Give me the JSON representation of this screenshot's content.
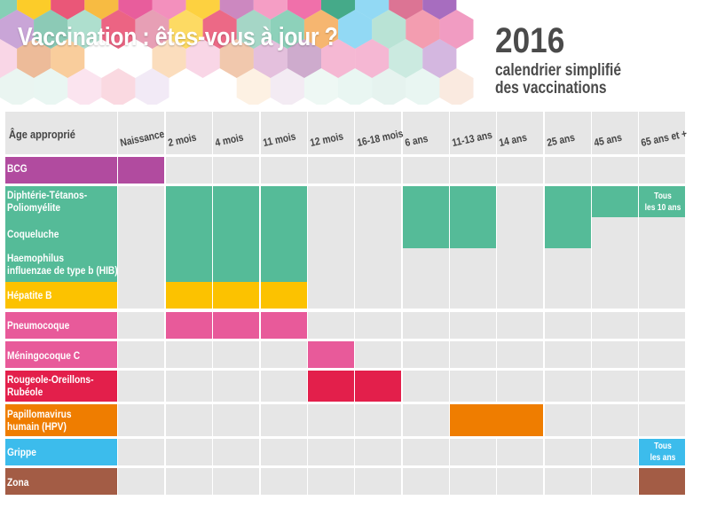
{
  "title": "Vaccination : êtes-vous à jour ?",
  "year": "2016",
  "subtitle_line1": "calendrier simplifié",
  "subtitle_line2": "des vaccinations",
  "age_header": "Âge approprié",
  "ages": [
    "Naissance",
    "2 mois",
    "4 mois",
    "11 mois",
    "12 mois",
    "16-18 mois",
    "6 ans",
    "11-13 ans",
    "14 ans",
    "25 ans",
    "45 ans",
    "65 ans et +"
  ],
  "colors": {
    "bcg": "#b14b9f",
    "dtp": "#55bb98",
    "hepatite": "#fcc200",
    "pneumo": "#e85a9a",
    "ror": "#e31f4b",
    "hpv": "#ef7d00",
    "grippe": "#3cbcec",
    "zona": "#a35c45",
    "empty": "#e6e6e6"
  },
  "vaccines": {
    "bcg": "BCG",
    "dtp_line1": "Diphtérie-Tétanos-",
    "dtp_line2": "Poliomyélite",
    "coqueluche": "Coqueluche",
    "hib_line1": "Haemophilus",
    "hib_line2": "influenzae de type b (HIB)",
    "hepatite": "Hépatite B",
    "pneumo": "Pneumocoque",
    "menin": "Méningocoque C",
    "ror_line1": "Rougeole-Oreillons-",
    "ror_line2": "Rubéole",
    "hpv_line1": "Papillomavirus",
    "hpv_line2": "humain (HPV)",
    "grippe": "Grippe",
    "zona": "Zona"
  },
  "notes": {
    "dtp_line1": "Tous",
    "dtp_line2": "les 10 ans",
    "grippe_line1": "Tous",
    "grippe_line2": "les ans"
  }
}
